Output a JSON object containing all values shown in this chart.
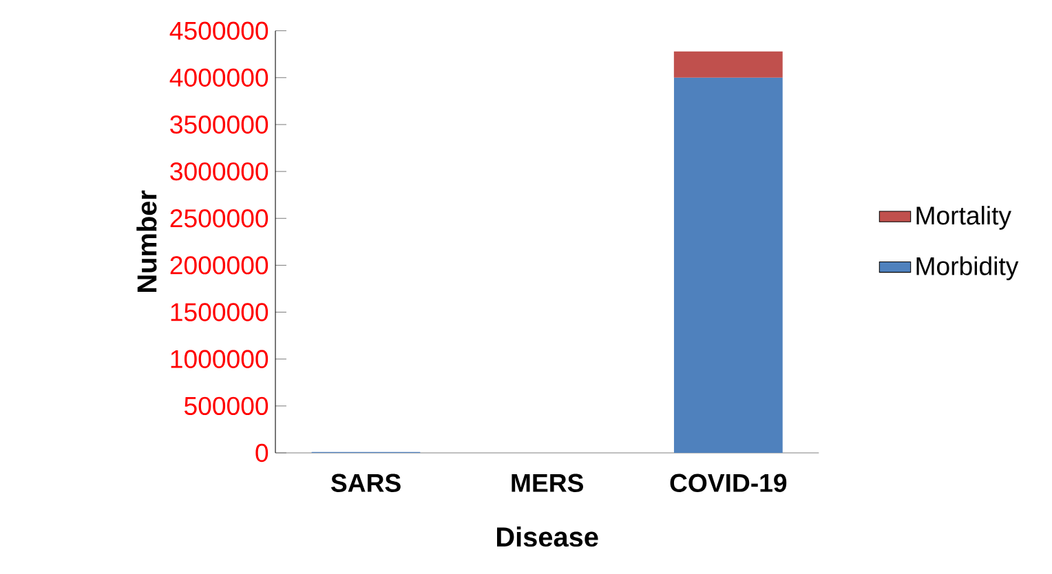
{
  "chart_data": {
    "type": "bar",
    "stacked": true,
    "xlabel": "Disease",
    "ylabel": "Number",
    "categories": [
      "SARS",
      "MERS",
      "COVID-19"
    ],
    "series": [
      {
        "name": "Morbidity",
        "color": "#4f81bd",
        "values": [
          10000,
          null,
          4000000
        ]
      },
      {
        "name": "Mortality",
        "color": "#c0504d",
        "values": [
          null,
          null,
          280000
        ]
      }
    ],
    "ylim": [
      0,
      4500000
    ],
    "yticks": [
      0,
      500000,
      1000000,
      1500000,
      2000000,
      2500000,
      3000000,
      3500000,
      4000000,
      4500000
    ],
    "legend": "right"
  }
}
